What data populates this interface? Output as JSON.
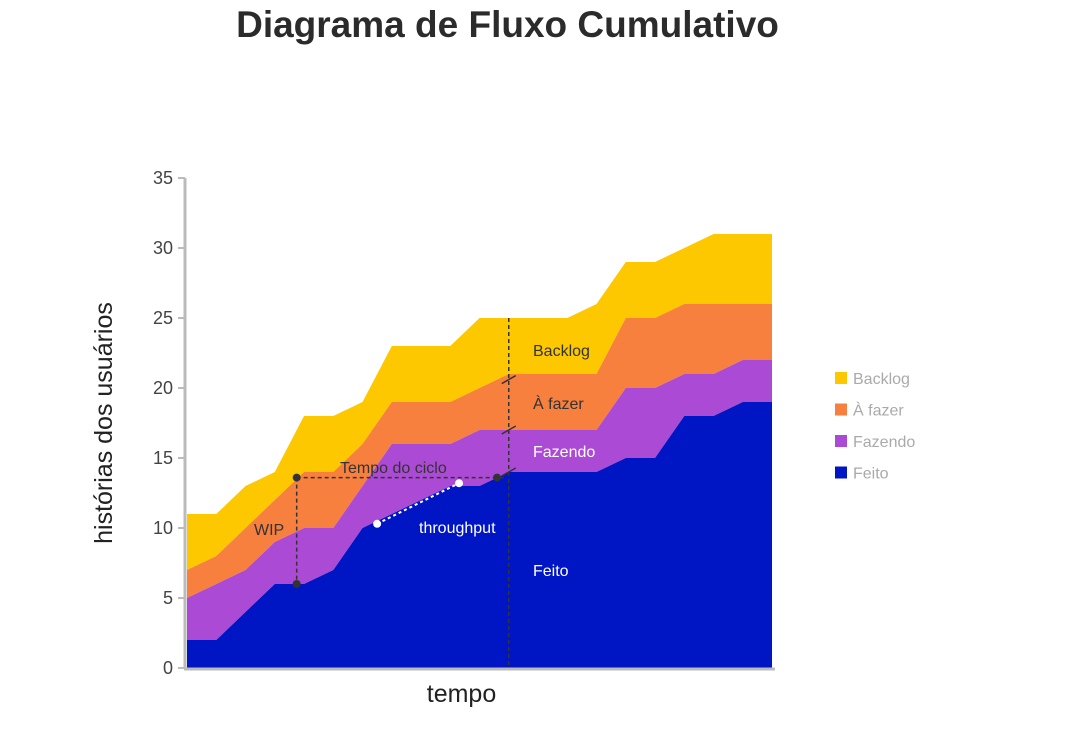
{
  "title": "Diagrama de Fluxo Cumulativo",
  "chart_data": {
    "type": "area",
    "title": "Diagrama de Fluxo Cumulativo",
    "xlabel": "tempo",
    "ylabel": "histórias dos usuários",
    "ylim": [
      0,
      35
    ],
    "yticks": [
      0,
      5,
      10,
      15,
      20,
      25,
      30,
      35
    ],
    "xlim": [
      0,
      20
    ],
    "x": [
      0,
      1,
      2,
      3,
      4,
      5,
      6,
      7,
      8,
      9,
      10,
      11,
      12,
      13,
      14,
      15,
      16,
      17,
      18,
      19,
      20
    ],
    "stacked": true,
    "series": [
      {
        "name": "Feito",
        "color": "#0015C4",
        "top": [
          2,
          2,
          4,
          6,
          6,
          7,
          10,
          11,
          12,
          13,
          13,
          14,
          14,
          14,
          14,
          15,
          15,
          18,
          18,
          19,
          19
        ]
      },
      {
        "name": "Fazendo",
        "color": "#AB4AD4",
        "top": [
          5,
          6,
          7,
          9,
          10,
          10,
          13,
          16,
          16,
          16,
          17,
          17,
          17,
          17,
          17,
          20,
          20,
          21,
          21,
          22,
          22
        ]
      },
      {
        "name": "À fazer",
        "color": "#F7803E",
        "top": [
          7,
          8,
          10,
          12,
          14,
          14,
          16,
          19,
          19,
          19,
          20,
          21,
          21,
          21,
          21,
          25,
          25,
          26,
          26,
          26,
          26
        ]
      },
      {
        "name": "Backlog",
        "color": "#FDC800",
        "top": [
          11,
          11,
          13,
          14,
          18,
          18,
          19,
          23,
          23,
          23,
          25,
          25,
          25,
          25,
          26,
          29,
          29,
          30,
          31,
          31,
          31
        ]
      }
    ],
    "legend": {
      "position": "right",
      "order": [
        "Backlog",
        "À fazer",
        "Fazendo",
        "Feito"
      ]
    },
    "annotations": {
      "wip": "WIP",
      "cycle_time": "Tempo do ciclo",
      "throughput": "throughput",
      "backlog": "Backlog",
      "todo": "À fazer",
      "doing": "Fazendo",
      "done": "Feito"
    }
  }
}
